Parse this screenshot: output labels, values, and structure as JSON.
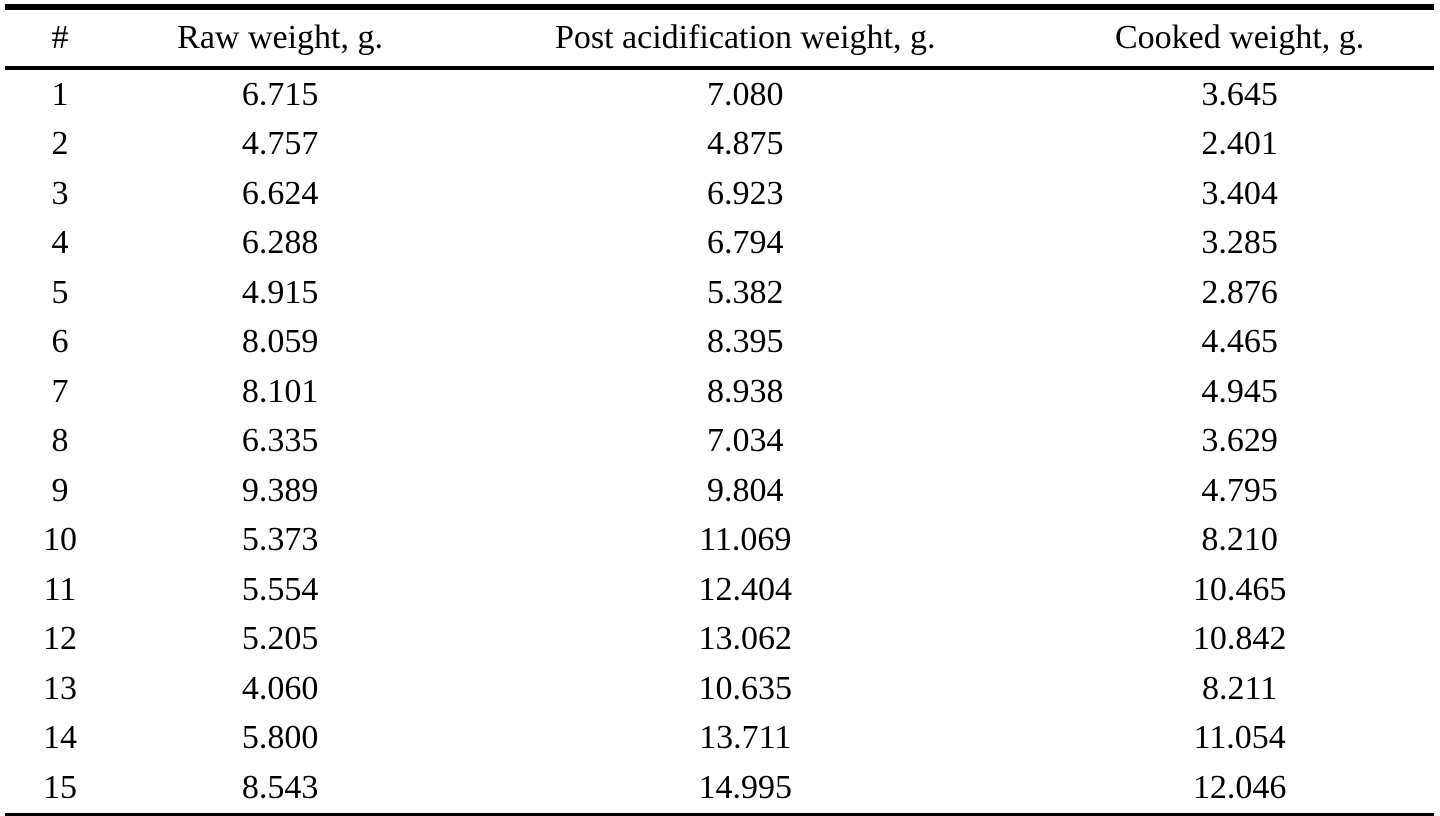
{
  "table": {
    "columns": [
      "#",
      "Raw weight, g.",
      "Post acidification weight, g.",
      "Cooked weight, g."
    ],
    "rows": [
      [
        "1",
        "6.715",
        "7.080",
        "3.645"
      ],
      [
        "2",
        "4.757",
        "4.875",
        "2.401"
      ],
      [
        "3",
        "6.624",
        "6.923",
        "3.404"
      ],
      [
        "4",
        "6.288",
        "6.794",
        "3.285"
      ],
      [
        "5",
        "4.915",
        "5.382",
        "2.876"
      ],
      [
        "6",
        "8.059",
        "8.395",
        "4.465"
      ],
      [
        "7",
        "8.101",
        "8.938",
        "4.945"
      ],
      [
        "8",
        "6.335",
        "7.034",
        "3.629"
      ],
      [
        "9",
        "9.389",
        "9.804",
        "4.795"
      ],
      [
        "10",
        "5.373",
        "11.069",
        "8.210"
      ],
      [
        "11",
        "5.554",
        "12.404",
        "10.465"
      ],
      [
        "12",
        "5.205",
        "13.062",
        "10.842"
      ],
      [
        "13",
        "4.060",
        "10.635",
        "8.211"
      ],
      [
        "14",
        "5.800",
        "13.711",
        "11.054"
      ],
      [
        "15",
        "8.543",
        "14.995",
        "12.046"
      ]
    ]
  }
}
